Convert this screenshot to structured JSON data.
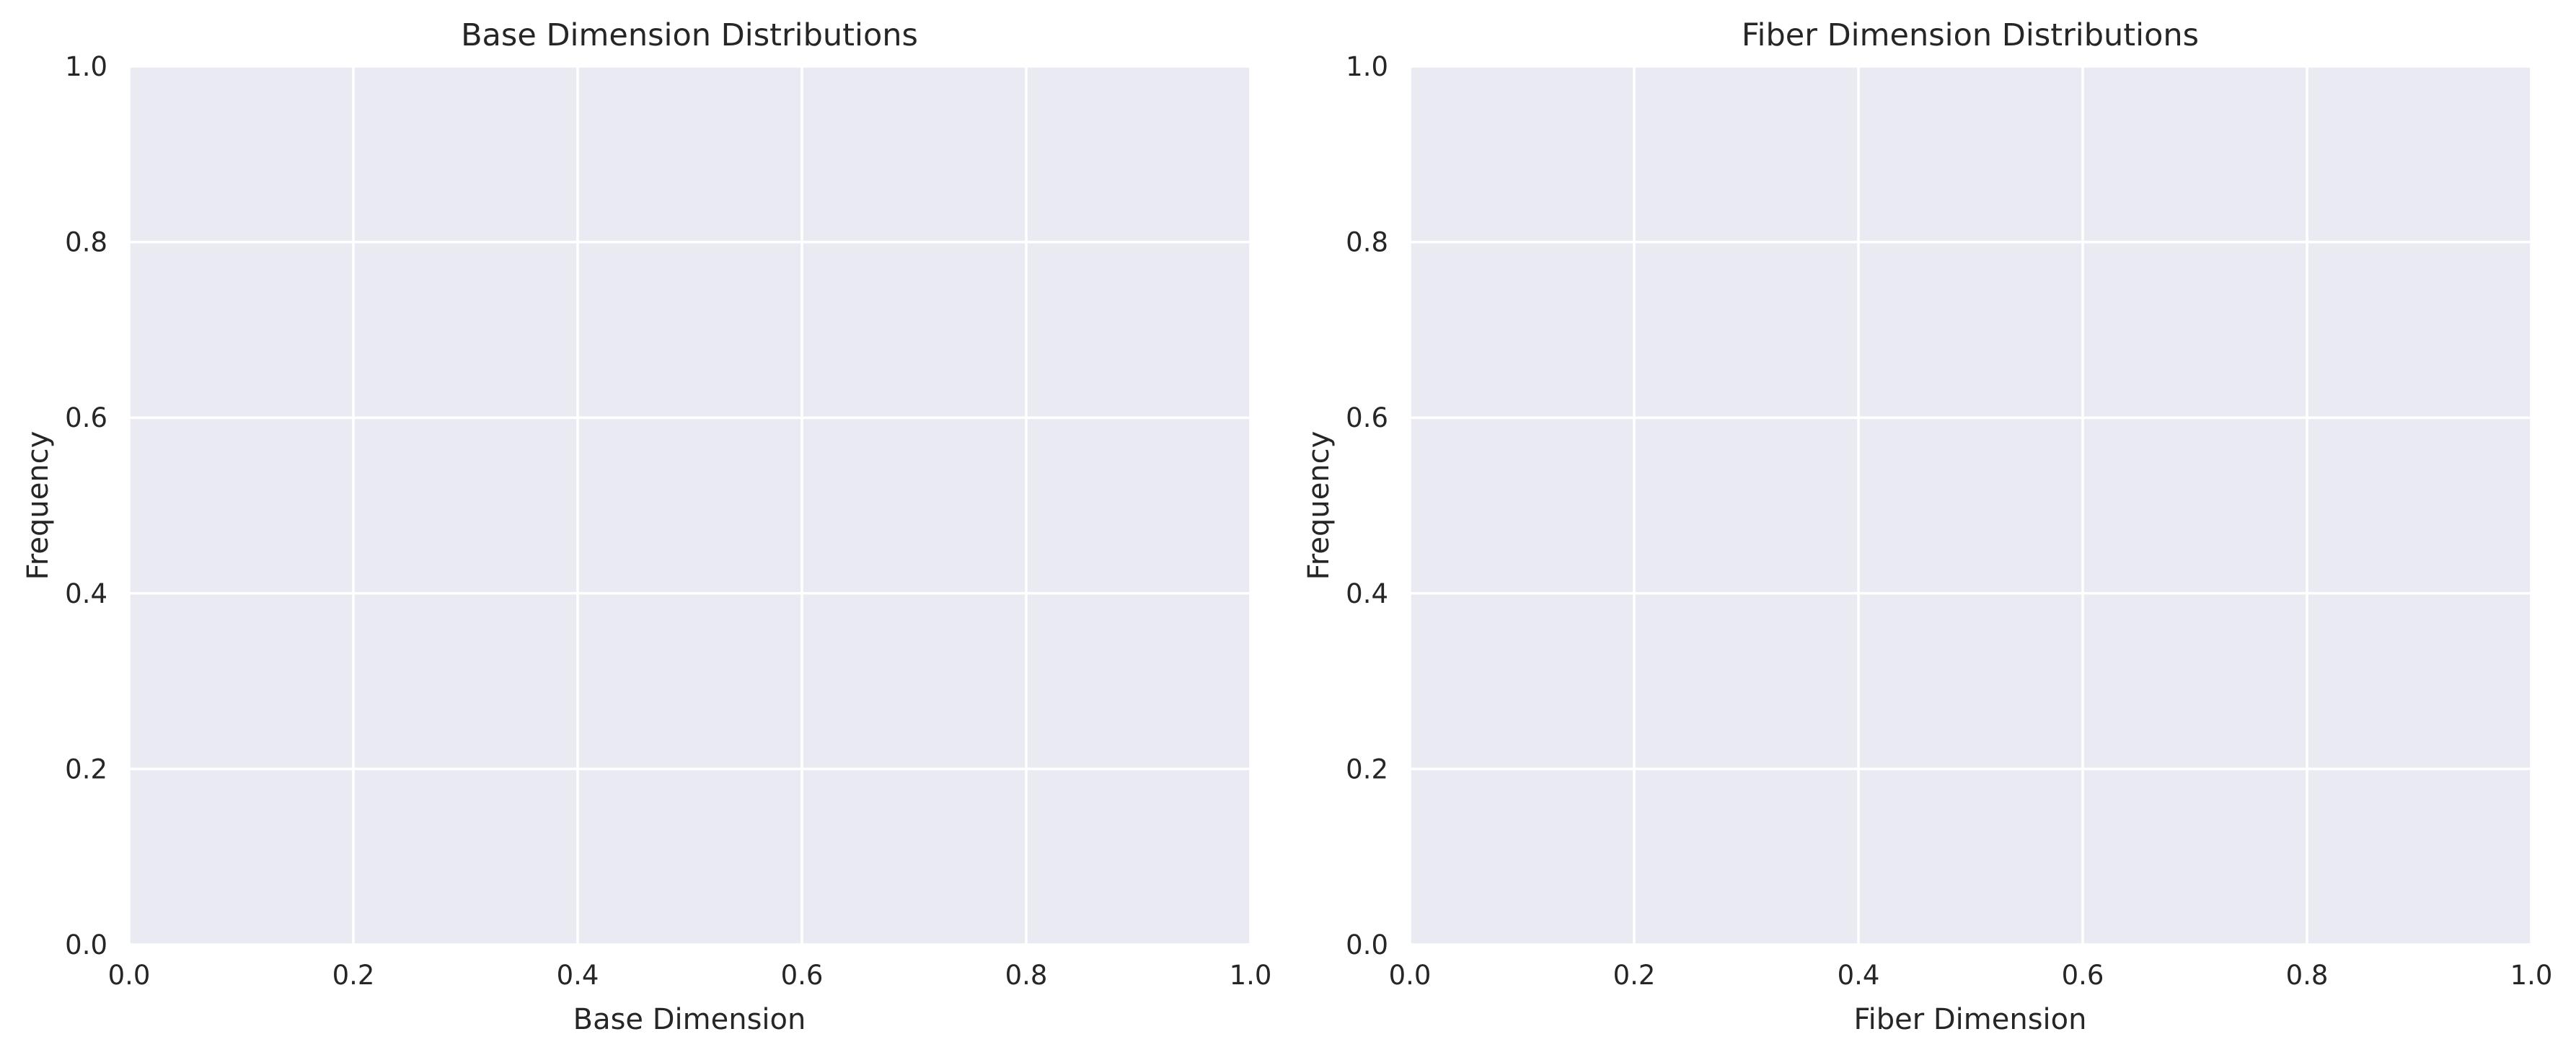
{
  "chart_data": [
    {
      "type": "bar",
      "title": "Base Dimension Distributions",
      "xlabel": "Base Dimension",
      "ylabel": "Frequency",
      "xlim": [
        0.0,
        1.0
      ],
      "ylim": [
        0.0,
        1.0
      ],
      "xticks": [
        "0.0",
        "0.2",
        "0.4",
        "0.6",
        "0.8",
        "1.0"
      ],
      "yticks": [
        "0.0",
        "0.2",
        "0.4",
        "0.6",
        "0.8",
        "1.0"
      ],
      "series": [],
      "grid": true,
      "background": "#EAEAF2",
      "grid_color": "#FFFFFF"
    },
    {
      "type": "bar",
      "title": "Fiber Dimension Distributions",
      "xlabel": "Fiber Dimension",
      "ylabel": "Frequency",
      "xlim": [
        0.0,
        1.0
      ],
      "ylim": [
        0.0,
        1.0
      ],
      "xticks": [
        "0.0",
        "0.2",
        "0.4",
        "0.6",
        "0.8",
        "1.0"
      ],
      "yticks": [
        "0.0",
        "0.2",
        "0.4",
        "0.6",
        "0.8",
        "1.0"
      ],
      "series": [],
      "grid": true,
      "background": "#EAEAF2",
      "grid_color": "#FFFFFF"
    }
  ]
}
